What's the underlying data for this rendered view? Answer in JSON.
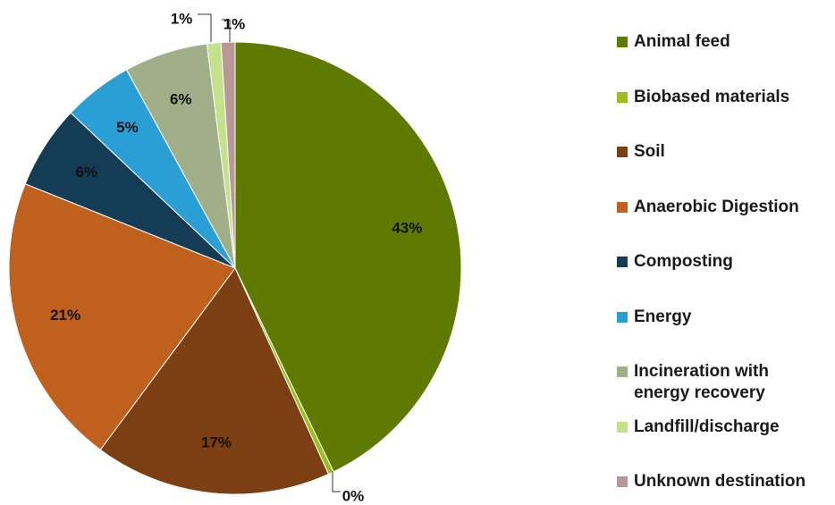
{
  "chart_data": {
    "type": "pie",
    "categories": [
      "Animal feed",
      "Biobased materials",
      "Soil",
      "Anaerobic Digestion",
      "Composting",
      "Energy",
      "Incineration with energy recovery",
      "Landfill/discharge",
      "Unknown destination"
    ],
    "values": [
      43,
      0.4,
      17,
      21,
      6,
      5,
      6,
      1,
      1
    ],
    "value_labels": [
      "43%",
      "0%",
      "17%",
      "21%",
      "6%",
      "5%",
      "6%",
      "1%",
      "1%"
    ],
    "colors": [
      "#5f7a00",
      "#9bbf1f",
      "#7b3f12",
      "#c0601e",
      "#143d55",
      "#2a9fd6",
      "#a0ae8a",
      "#c6e18b",
      "#b89a94"
    ],
    "legend": "right"
  }
}
